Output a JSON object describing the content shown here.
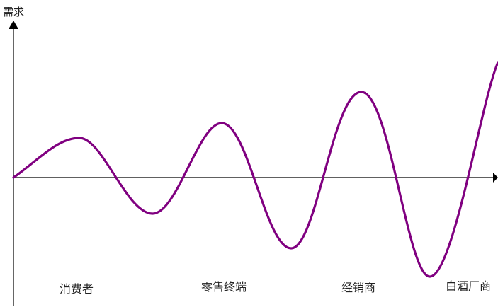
{
  "y_axis_label": "需求",
  "stage_labels": [
    "消费者",
    "零售终端",
    "经销商",
    "白酒厂商"
  ],
  "colors": {
    "axis": "#000000",
    "curve": "#800080"
  }
}
